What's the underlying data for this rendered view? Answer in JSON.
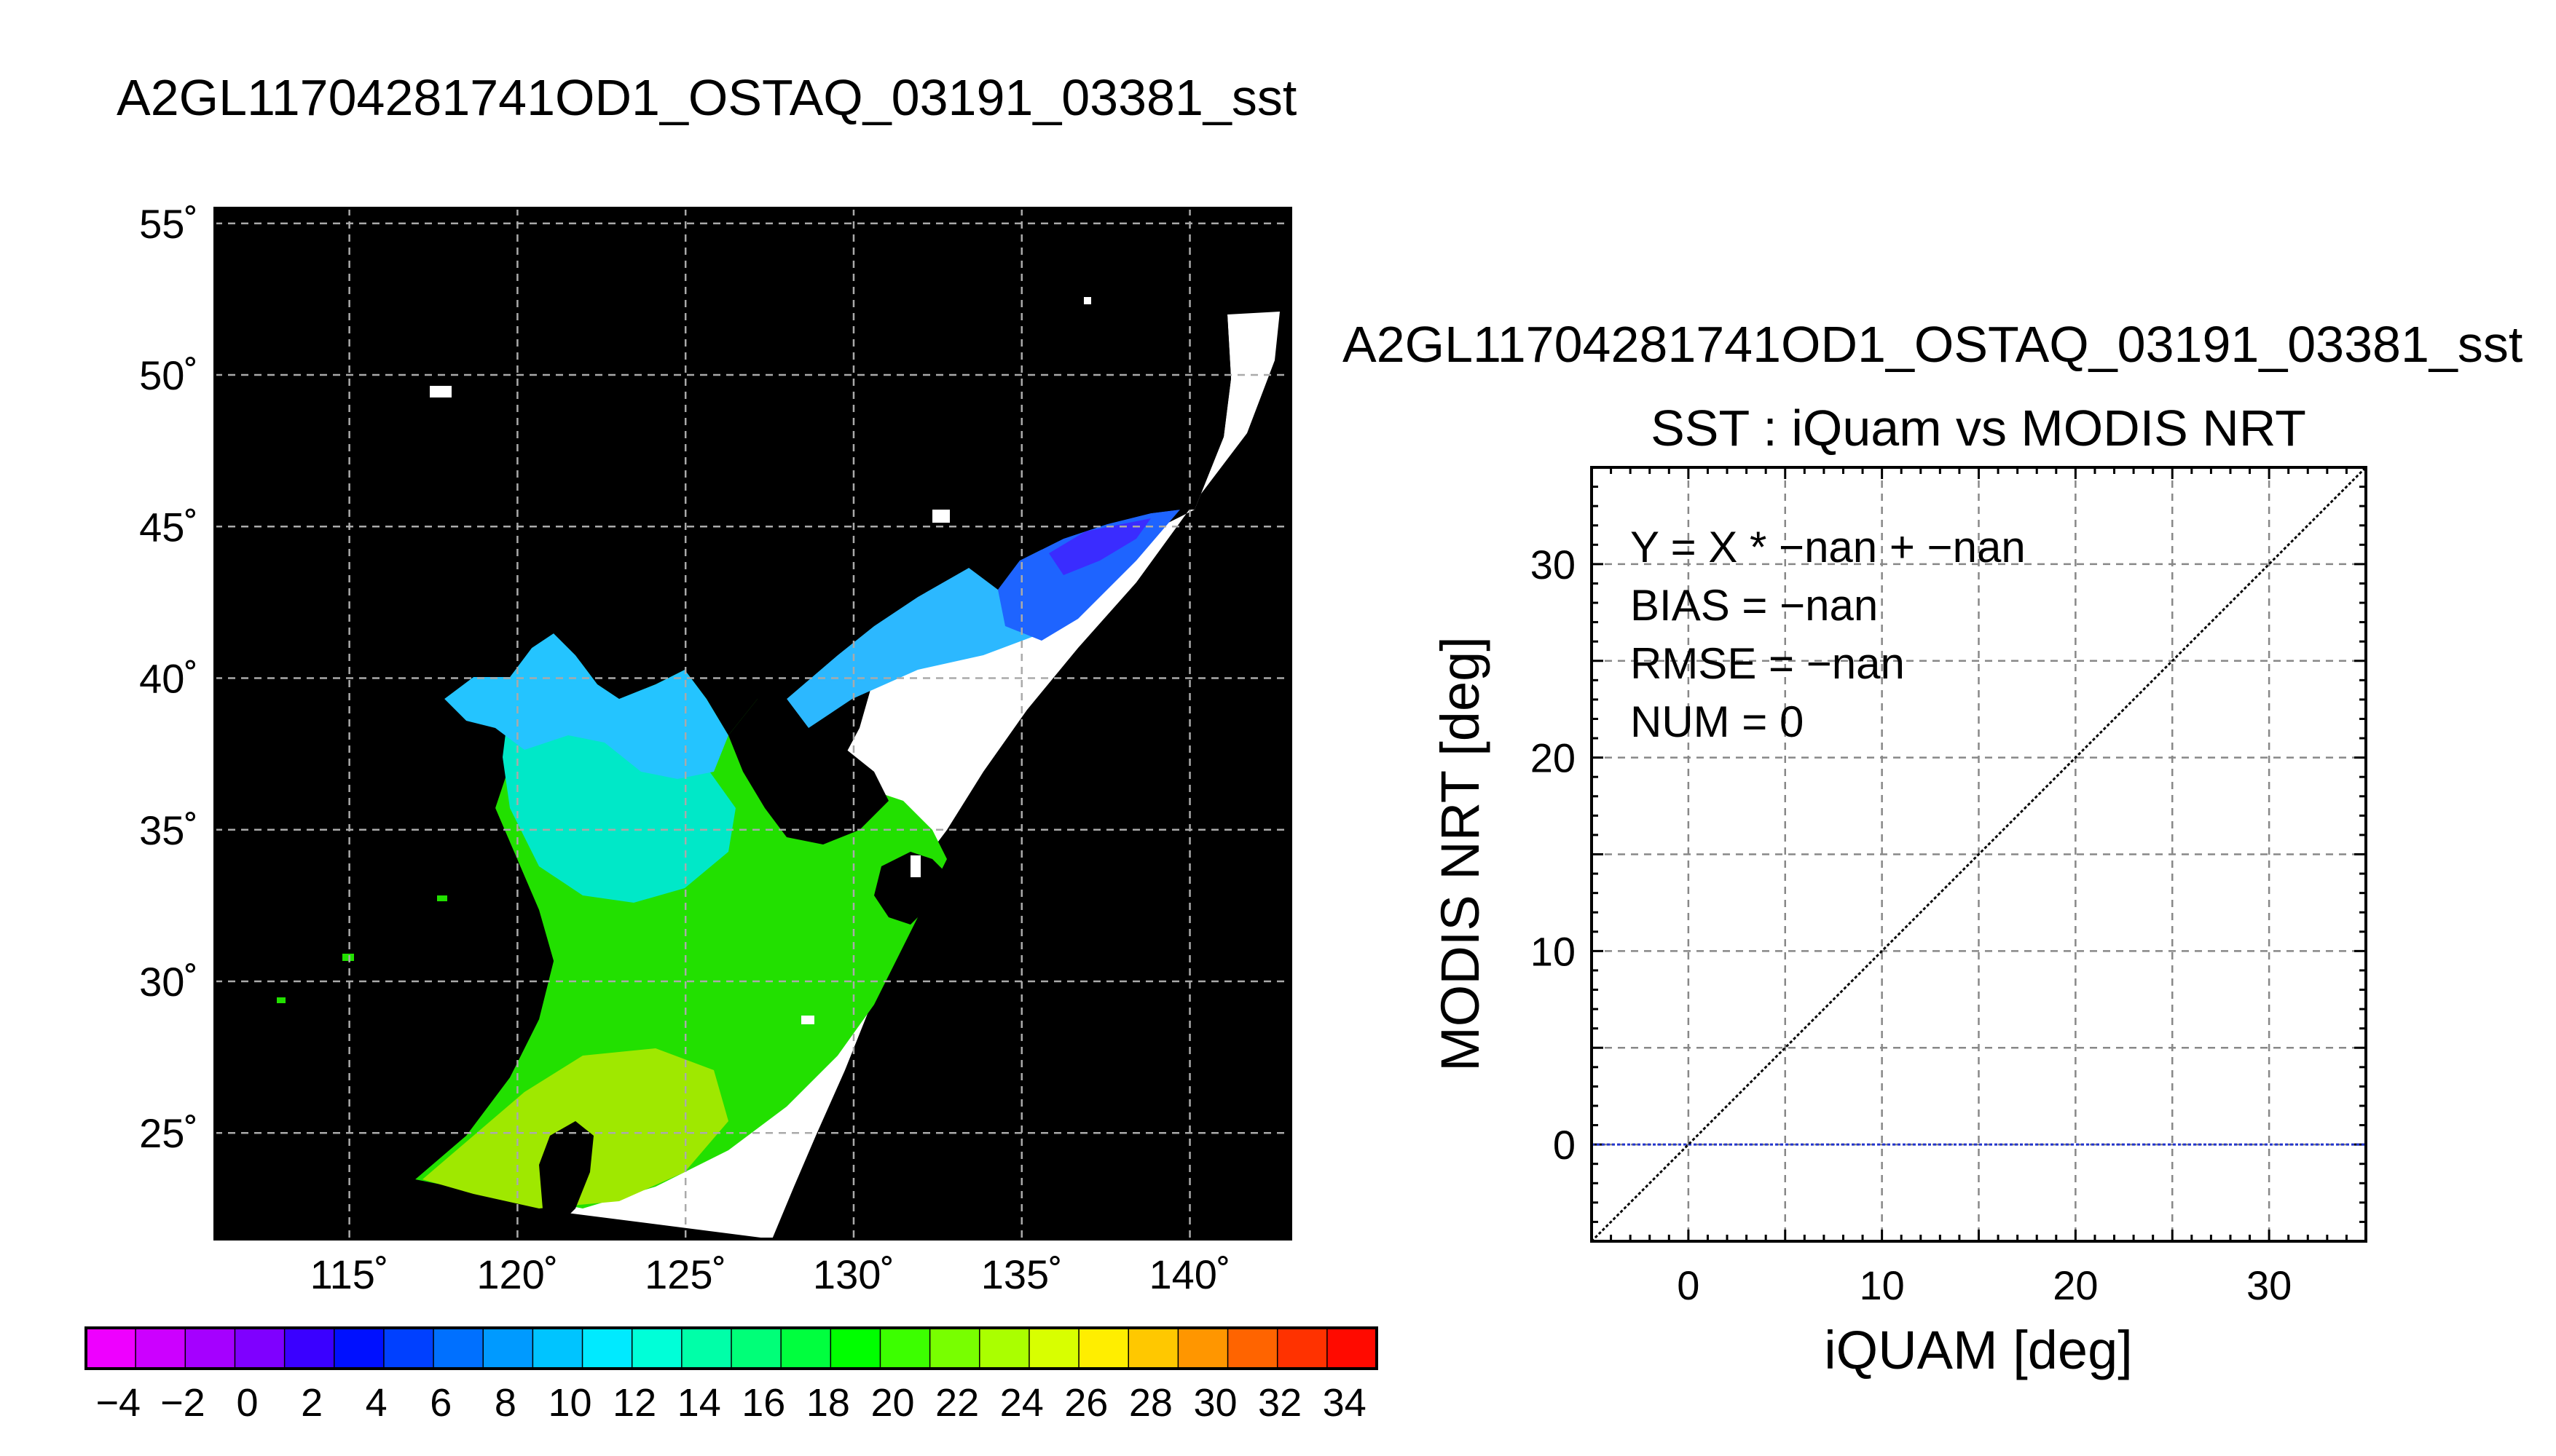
{
  "map": {
    "title": "A2GL11704281741OD1_OSTAQ_03191_03381_sst",
    "lat_labels": [
      "55˚",
      "50˚",
      "45˚",
      "40˚",
      "35˚",
      "30˚",
      "25˚"
    ],
    "lon_labels": [
      "115˚",
      "120˚",
      "125˚",
      "130˚",
      "135˚",
      "140˚"
    ],
    "colorbar": {
      "labels": [
        "−4",
        "−2",
        "0",
        "2",
        "4",
        "6",
        "8",
        "10",
        "12",
        "14",
        "16",
        "18",
        "20",
        "22",
        "24",
        "26",
        "28",
        "30",
        "32",
        "34"
      ],
      "colors": [
        "#ee00ff",
        "#cc00ff",
        "#a500ff",
        "#7f00ff",
        "#3a00ff",
        "#0010ff",
        "#0040ff",
        "#0070ff",
        "#009aff",
        "#00c4ff",
        "#00eaff",
        "#00ffd8",
        "#00ffa8",
        "#00ff78",
        "#00ff3e",
        "#00ff00",
        "#3cff00",
        "#78ff00",
        "#aaff00",
        "#d8ff00",
        "#ffee00",
        "#ffc800",
        "#ff9600",
        "#ff6400",
        "#ff3200",
        "#ff0a00"
      ]
    }
  },
  "scatter": {
    "header": "A2GL11704281741OD1_OSTAQ_03191_03381_sst",
    "title": "SST : iQuam vs MODIS NRT",
    "stats": [
      "Y = X * −nan + −nan",
      "BIAS = −nan",
      "RMSE = −nan",
      "NUM = 0"
    ]
  },
  "chart_data": [
    {
      "type": "heatmap",
      "title": "A2GL11704281741OD1_OSTAQ_03191_03381_sst",
      "xlabel": "",
      "ylabel": "",
      "xlim": [
        111,
        143
      ],
      "ylim": [
        21.5,
        55.5
      ],
      "x_ticks": [
        115,
        120,
        125,
        130,
        135,
        140
      ],
      "y_ticks": [
        25,
        30,
        35,
        40,
        45,
        50,
        55
      ],
      "colorbar_range": [
        -5,
        35
      ],
      "grid": true
    },
    {
      "type": "scatter",
      "title": "SST : iQuam vs MODIS NRT",
      "xlabel": "iQUAM [deg]",
      "ylabel": "MODIS NRT [deg]",
      "xlim": [
        -5,
        35
      ],
      "ylim": [
        -5,
        35
      ],
      "x_ticks": [
        0,
        10,
        20,
        30
      ],
      "y_ticks": [
        0,
        10,
        20,
        30
      ],
      "grid": true,
      "series": [
        {
          "style": "identity-line",
          "color": "#000000",
          "x": [
            -5,
            35
          ],
          "y": [
            -5,
            35
          ]
        },
        {
          "style": "zero-line",
          "color": "#2233cc",
          "x": [
            -5,
            35
          ],
          "y": [
            0,
            0
          ]
        }
      ],
      "points": []
    }
  ]
}
